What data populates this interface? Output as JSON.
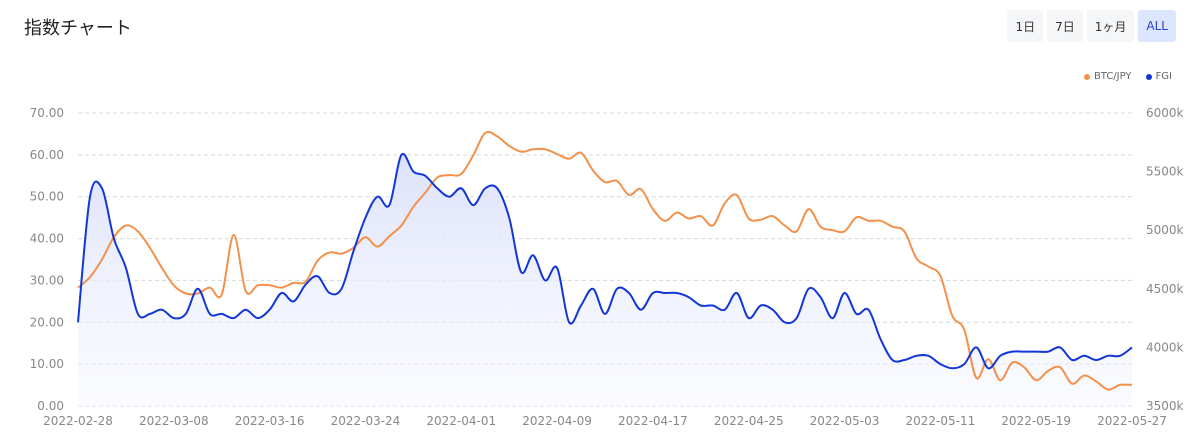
{
  "header": {
    "title": "指数チャート",
    "ranges": [
      "1日",
      "7日",
      "1ヶ月",
      "ALL"
    ],
    "active_range": "ALL"
  },
  "legend": {
    "btc_label": "BTC/JPY",
    "fgi_label": "FGI"
  },
  "colors": {
    "btc": "#f3914a",
    "fgi": "#1336d6",
    "active_bg": "#dde6ff"
  },
  "chart_data": {
    "type": "line",
    "left_axis": {
      "ticks": [
        "0.00",
        "10.00",
        "20.00",
        "30.00",
        "40.00",
        "50.00",
        "60.00",
        "70.00"
      ],
      "ylim": [
        0,
        70
      ]
    },
    "right_axis": {
      "ticks": [
        "3500k",
        "4000k",
        "4500k",
        "5000k",
        "5500k",
        "6000k"
      ],
      "ylim": [
        3500,
        6000
      ]
    },
    "x_ticks": [
      "2022-02-28",
      "2022-03-08",
      "2022-03-16",
      "2022-03-24",
      "2022-04-01",
      "2022-04-09",
      "2022-04-17",
      "2022-04-25",
      "2022-05-03",
      "2022-05-11",
      "2022-05-19",
      "2022-05-27"
    ],
    "grid": true,
    "legend_position": "top-right",
    "series": [
      {
        "name": "BTC/JPY",
        "axis": "right",
        "x": [
          0,
          1,
          2,
          3,
          4,
          5,
          6,
          7,
          8,
          9,
          10,
          11,
          12,
          13,
          14,
          15,
          16,
          17,
          18,
          19,
          20,
          21,
          22,
          23,
          24,
          25,
          26,
          27,
          28,
          29,
          30,
          31,
          32,
          33,
          34,
          35,
          36,
          37,
          38,
          39,
          40,
          41,
          42,
          43,
          44,
          45,
          46,
          47,
          48,
          49,
          50,
          51,
          52,
          53,
          54,
          55,
          56,
          57,
          58,
          59,
          60,
          61,
          62,
          63,
          64,
          65,
          66,
          67,
          68,
          69,
          70,
          71,
          72,
          73,
          74,
          75,
          76,
          77,
          78,
          79,
          80,
          81,
          82,
          83,
          84,
          85,
          86,
          87,
          88
        ],
        "values": [
          4510,
          4600,
          4750,
          4940,
          5040,
          4990,
          4850,
          4680,
          4530,
          4460,
          4460,
          4510,
          4450,
          4960,
          4480,
          4530,
          4530,
          4510,
          4550,
          4560,
          4740,
          4810,
          4800,
          4850,
          4940,
          4860,
          4950,
          5040,
          5200,
          5320,
          5450,
          5470,
          5480,
          5640,
          5830,
          5800,
          5720,
          5670,
          5690,
          5690,
          5650,
          5610,
          5660,
          5510,
          5410,
          5420,
          5300,
          5350,
          5180,
          5080,
          5150,
          5100,
          5120,
          5040,
          5230,
          5300,
          5100,
          5090,
          5120,
          5040,
          4990,
          5180,
          5030,
          5000,
          4990,
          5110,
          5080,
          5080,
          5030,
          4990,
          4760,
          4690,
          4610,
          4270,
          4150,
          3740,
          3900,
          3720,
          3870,
          3830,
          3720,
          3800,
          3830,
          3690,
          3760,
          3710,
          3640,
          3680,
          3680
        ]
      },
      {
        "name": "FGI",
        "axis": "left",
        "x": [
          0,
          1,
          2,
          3,
          4,
          5,
          6,
          7,
          8,
          9,
          10,
          11,
          12,
          13,
          14,
          15,
          16,
          17,
          18,
          19,
          20,
          21,
          22,
          23,
          24,
          25,
          26,
          27,
          28,
          29,
          30,
          31,
          32,
          33,
          34,
          35,
          36,
          37,
          38,
          39,
          40,
          41,
          42,
          43,
          44,
          45,
          46,
          47,
          48,
          49,
          50,
          51,
          52,
          53,
          54,
          55,
          56,
          57,
          58,
          59,
          60,
          61,
          62,
          63,
          64,
          65,
          66,
          67,
          68,
          69,
          70,
          71,
          72,
          73,
          74,
          75,
          76,
          77,
          78,
          79,
          80,
          81,
          82,
          83,
          84,
          85,
          86,
          87,
          88
        ],
        "values": [
          20,
          50,
          52,
          40,
          33,
          22,
          22,
          23,
          21,
          22,
          28,
          22,
          22,
          21,
          23,
          21,
          23,
          27,
          25,
          29,
          31,
          27,
          28,
          37,
          45,
          50,
          48,
          60,
          56,
          55,
          52,
          50,
          52,
          48,
          52,
          52,
          45,
          32,
          36,
          30,
          33,
          20,
          24,
          28,
          22,
          28,
          27,
          23,
          27,
          27,
          27,
          26,
          24,
          24,
          23,
          27,
          21,
          24,
          23,
          20,
          21,
          28,
          26,
          21,
          27,
          22,
          23,
          16,
          11,
          11,
          12,
          12,
          10,
          9,
          10,
          14,
          9,
          12,
          13,
          13,
          13,
          13,
          14,
          11,
          12,
          11,
          12,
          12,
          14
        ]
      }
    ]
  }
}
